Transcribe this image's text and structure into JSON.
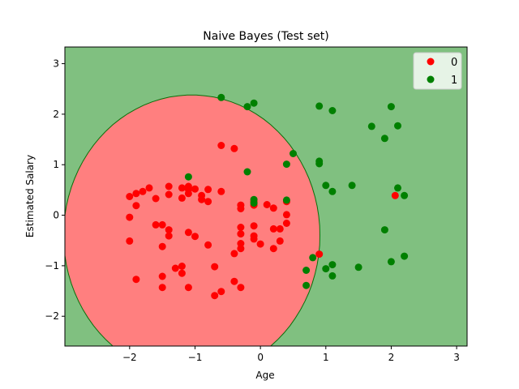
{
  "chart_data": {
    "type": "scatter",
    "title": "Naive Bayes (Test set)",
    "xlabel": "Age",
    "ylabel": "Estimated Salary",
    "xlim": [
      -2.99,
      3.16
    ],
    "ylim": [
      -2.59,
      3.33
    ],
    "x_ticks": [
      -2,
      -1,
      0,
      1,
      2,
      3
    ],
    "y_ticks": [
      -2,
      -1,
      0,
      1,
      2,
      3
    ],
    "grid": false,
    "legend_position": "top-right",
    "regions": {
      "class_0_color": "#ff7f7f",
      "class_1_color": "#80c080",
      "boundary_color": "#0a6f0a"
    },
    "series": [
      {
        "name": "0",
        "color": "#ff0000",
        "points": [
          [
            -2.0,
            0.37
          ],
          [
            -1.9,
            0.43
          ],
          [
            -1.8,
            0.47
          ],
          [
            -1.7,
            0.54
          ],
          [
            -2.0,
            -0.04
          ],
          [
            -1.9,
            0.19
          ],
          [
            -2.0,
            -0.51
          ],
          [
            -1.9,
            -1.27
          ],
          [
            -1.6,
            0.33
          ],
          [
            -1.6,
            -0.19
          ],
          [
            -1.5,
            -0.19
          ],
          [
            -1.5,
            -0.62
          ],
          [
            -1.4,
            0.57
          ],
          [
            -1.4,
            0.41
          ],
          [
            -1.4,
            -0.29
          ],
          [
            -1.4,
            -0.41
          ],
          [
            -1.2,
            0.54
          ],
          [
            -1.2,
            0.34
          ],
          [
            -1.3,
            -1.05
          ],
          [
            -1.2,
            -1.01
          ],
          [
            -1.5,
            -1.21
          ],
          [
            -1.5,
            -1.43
          ],
          [
            -1.2,
            -1.15
          ],
          [
            -1.1,
            0.57
          ],
          [
            -1.1,
            0.51
          ],
          [
            -1.1,
            0.43
          ],
          [
            -1.0,
            0.52
          ],
          [
            -0.9,
            0.39
          ],
          [
            -0.9,
            0.31
          ],
          [
            -0.8,
            0.51
          ],
          [
            -0.8,
            0.27
          ],
          [
            -1.1,
            -0.34
          ],
          [
            -1.0,
            -0.42
          ],
          [
            -0.8,
            -0.59
          ],
          [
            -0.7,
            -1.02
          ],
          [
            -1.1,
            -1.43
          ],
          [
            -0.7,
            -1.59
          ],
          [
            -0.6,
            -1.51
          ],
          [
            -0.6,
            0.47
          ],
          [
            -0.6,
            1.38
          ],
          [
            -0.4,
            1.32
          ],
          [
            -0.3,
            0.2
          ],
          [
            -0.3,
            0.13
          ],
          [
            -0.3,
            -0.24
          ],
          [
            -0.3,
            -0.37
          ],
          [
            -0.3,
            -0.56
          ],
          [
            -0.3,
            -0.66
          ],
          [
            -0.4,
            -0.76
          ],
          [
            -0.4,
            -1.31
          ],
          [
            -0.3,
            -1.43
          ],
          [
            -0.1,
            0.27
          ],
          [
            -0.1,
            0.2
          ],
          [
            -0.1,
            -0.21
          ],
          [
            -0.1,
            -0.41
          ],
          [
            -0.1,
            -0.47
          ],
          [
            0.0,
            -0.57
          ],
          [
            0.1,
            0.21
          ],
          [
            0.2,
            0.14
          ],
          [
            0.2,
            -0.27
          ],
          [
            0.3,
            -0.27
          ],
          [
            0.3,
            -0.51
          ],
          [
            0.2,
            -0.66
          ],
          [
            0.4,
            0.01
          ],
          [
            0.4,
            -0.16
          ],
          [
            0.4,
            0.27
          ],
          [
            0.9,
            -0.77
          ],
          [
            2.06,
            0.39
          ]
        ]
      },
      {
        "name": "1",
        "color": "#008000",
        "points": [
          [
            -0.6,
            2.33
          ],
          [
            -0.2,
            2.15
          ],
          [
            -0.1,
            2.22
          ],
          [
            -1.1,
            0.76
          ],
          [
            -0.2,
            0.86
          ],
          [
            -0.1,
            0.31
          ],
          [
            -0.1,
            0.24
          ],
          [
            0.4,
            1.01
          ],
          [
            0.5,
            1.22
          ],
          [
            0.4,
            0.3
          ],
          [
            0.9,
            2.16
          ],
          [
            1.1,
            2.07
          ],
          [
            0.9,
            1.07
          ],
          [
            0.9,
            1.02
          ],
          [
            1.0,
            0.59
          ],
          [
            1.1,
            0.47
          ],
          [
            1.4,
            0.59
          ],
          [
            0.8,
            -0.84
          ],
          [
            0.7,
            -1.09
          ],
          [
            0.7,
            -1.39
          ],
          [
            1.0,
            -1.06
          ],
          [
            1.1,
            -0.98
          ],
          [
            1.1,
            -1.2
          ],
          [
            1.5,
            -1.03
          ],
          [
            1.7,
            1.76
          ],
          [
            1.9,
            1.52
          ],
          [
            2.0,
            2.15
          ],
          [
            2.1,
            1.77
          ],
          [
            2.1,
            0.54
          ],
          [
            2.2,
            0.39
          ],
          [
            1.9,
            -0.29
          ],
          [
            2.0,
            -0.92
          ],
          [
            2.2,
            -0.81
          ]
        ]
      }
    ]
  }
}
